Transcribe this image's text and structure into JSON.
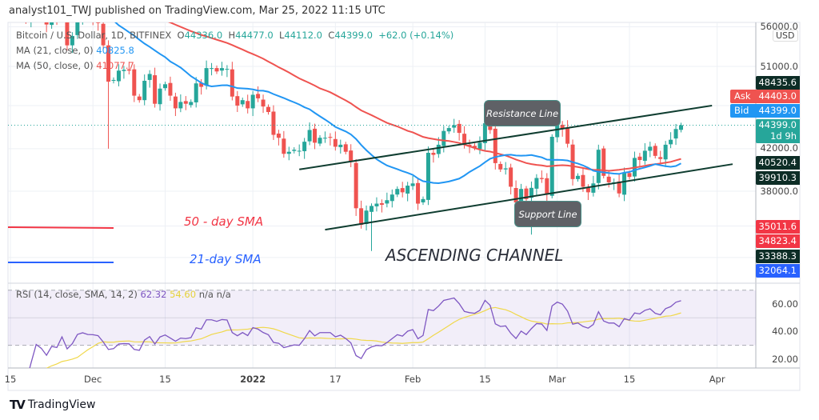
{
  "header": {
    "publisher": "analyst101_TWJ published on TradingView.com, Mar 25, 2022 11:15 UTC"
  },
  "legend": {
    "symbol": "Bitcoin / U.S. Dollar, 1D, BITFINEX",
    "o": "O",
    "o_val": "44336.0",
    "h": "H",
    "h_val": "44477.0",
    "l": "L",
    "l_val": "44112.0",
    "c": "C",
    "c_val": "44399.0",
    "change": "+62.0 (+0.14%)",
    "ma21": "MA (21, close, 0)",
    "ma21_val": "40825.8",
    "ma50": "MA (50, close, 0)",
    "ma50_val": "41077.7",
    "rsi": "RSI (14, close, SMA, 14, 2)",
    "rsi_val": "62.32",
    "rsi_sma_val": "54.60",
    "na1": "n/a",
    "na2": "n/a"
  },
  "annotations": {
    "resistance": "Resistance Line",
    "support": "Support Line",
    "channel": "ASCENDING CHANNEL",
    "sma50": "50 - day SMA",
    "sma21": "21-day SMA"
  },
  "price_axis": {
    "currency": "USD",
    "labels": [
      "56000.0",
      "51000.0",
      "42000.0",
      "38000.0"
    ],
    "tags": [
      {
        "text": "48435.6",
        "color": "#0d2d26",
        "price": 48435.6
      },
      {
        "label": "Ask",
        "text": "44403.0",
        "color": "#ef5350",
        "price": 44403
      },
      {
        "label": "Bid",
        "text": "44399.0",
        "color": "#2196f3",
        "price": 44399
      },
      {
        "text": "44399.0",
        "sub": "1d 9h",
        "color": "#26a69a",
        "price": 44399
      },
      {
        "text": "40520.4",
        "color": "#0d2d26",
        "price": 40520.4
      },
      {
        "text": "39910.3",
        "color": "#0d2d26",
        "price": 39910.3
      },
      {
        "text": "35011.6",
        "color": "#f23645",
        "price": 35011.6
      },
      {
        "text": "34823.4",
        "color": "#f23645",
        "price": 34823.4
      },
      {
        "text": "33388.3",
        "color": "#0d2d26",
        "price": 33388.3
      },
      {
        "text": "32064.1",
        "color": "#2962ff",
        "price": 32064.1
      }
    ]
  },
  "rsi_axis": [
    "60.00",
    "40.00",
    "20.00"
  ],
  "time_axis": [
    "15",
    "Dec",
    "15",
    "2022",
    "17",
    "Feb",
    "15",
    "Mar",
    "15",
    "Apr"
  ],
  "footer": {
    "brand": "TradingView"
  },
  "colors": {
    "up": "#26a69a",
    "down": "#ef5350",
    "ma21": "#2196f3",
    "ma50": "#ef5350",
    "rsi": "#7e57c2",
    "rsi_sma": "#f0d84a"
  },
  "chart_data": {
    "type": "candlestick",
    "title": "Bitcoin / U.S. Dollar, 1D, BITFINEX",
    "start_date": "2021-11-15",
    "end_date": "2022-03-25",
    "ylim": [
      31500,
      56500
    ],
    "yscale": "log",
    "closes": [
      63500,
      60100,
      60300,
      56900,
      58100,
      59700,
      58700,
      56300,
      57500,
      57100,
      58900,
      53600,
      54800,
      57300,
      57800,
      57000,
      56900,
      56500,
      53600,
      49200,
      49400,
      50500,
      50600,
      50500,
      47600,
      47100,
      49300,
      50100,
      46700,
      48400,
      48900,
      47600,
      46200,
      46900,
      46700,
      46900,
      49000,
      48600,
      50800,
      50800,
      50400,
      50800,
      50700,
      47500,
      46500,
      47100,
      46200,
      47700,
      47300,
      46400,
      45800,
      43400,
      43100,
      41500,
      41700,
      41900,
      41800,
      42700,
      43900,
      42600,
      43100,
      43100,
      43100,
      42200,
      42400,
      41700,
      40700,
      36500,
      35100,
      36300,
      36700,
      36900,
      36800,
      37200,
      37700,
      38200,
      37900,
      38500,
      38700,
      36900,
      37300,
      41600,
      41400,
      42400,
      43800,
      44100,
      44400,
      43600,
      42400,
      42200,
      42100,
      42600,
      44600,
      43900,
      40600,
      40000,
      40100,
      38400,
      37000,
      38200,
      37300,
      38300,
      39200,
      39100,
      37700,
      43200,
      44400,
      44000,
      42500,
      39100,
      39400,
      38400,
      37900,
      38700,
      41900,
      39400,
      38800,
      38800,
      37800,
      39700,
      39300,
      41100,
      40900,
      41800,
      42200,
      41300,
      41000,
      42400,
      42900,
      44000,
      44399
    ],
    "low_overrides": {
      "19": 42000,
      "70": 33000,
      "101": 34300
    },
    "channel": {
      "resistance": [
        [
          "2022-01-10",
          40000
        ],
        [
          "2022-03-31",
          46500
        ]
      ],
      "support": [
        [
          "2022-01-15",
          34700
        ],
        [
          "2022-04-04",
          40500
        ]
      ]
    },
    "rsi_band": [
      30,
      70
    ],
    "rsi_ylim": [
      14,
      72
    ]
  }
}
